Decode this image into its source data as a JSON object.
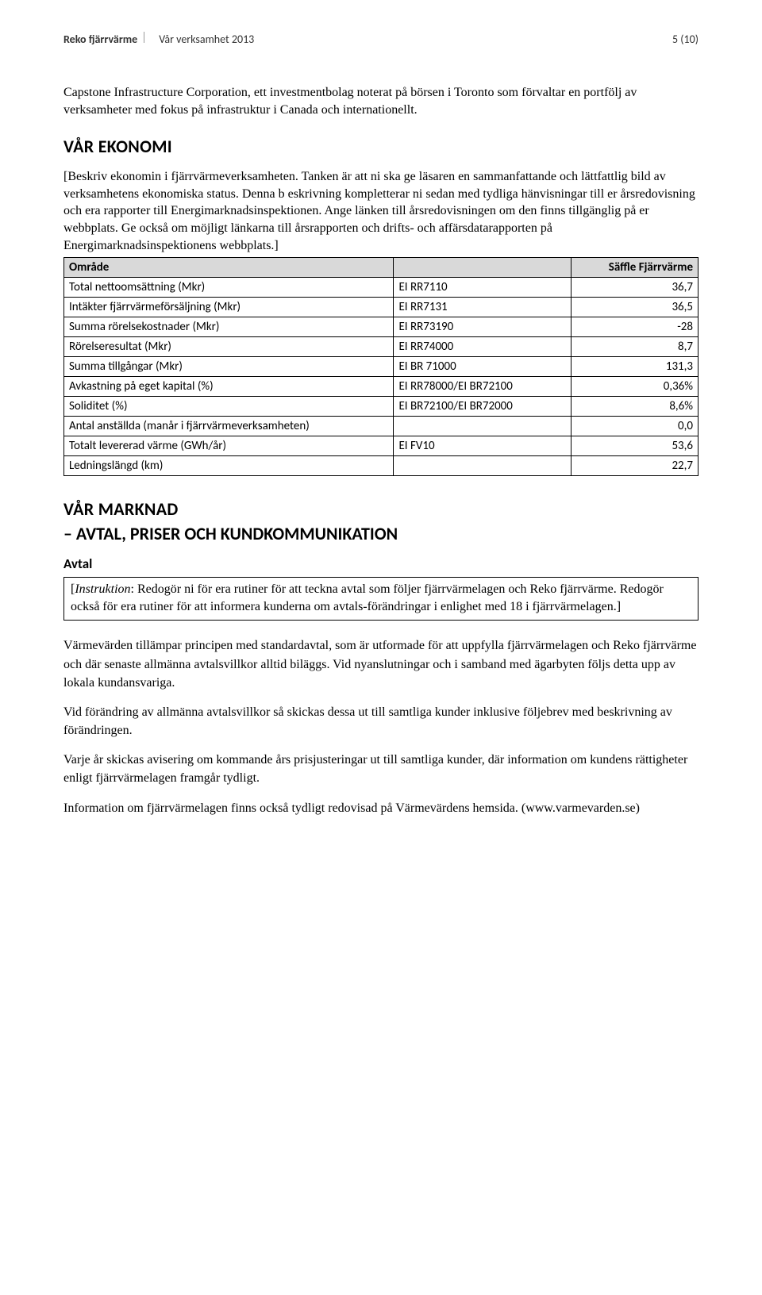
{
  "header": {
    "left": "Reko fjärrvärme",
    "center": "Vår verksamhet 2013",
    "right": "5 (10)"
  },
  "intro": "Capstone Infrastructure Corporation, ett investmentbolag noterat på börsen i Toronto som förvaltar en portfölj av verksamheter med fokus på infrastruktur i Canada och internationellt.",
  "ekonomi": {
    "heading": "VÅR EKONOMI",
    "instruction": "[Beskriv ekonomin i fjärrvärmeverksamheten. Tanken är att ni ska ge läsaren en sammanfattande och lättfattlig bild av verksamhetens ekonomiska status. Denna b eskrivning kompletterar ni sedan med tydliga hänvisningar till er årsredovisning och era rapporter till Energimarknadsinspektionen. Ange länken till årsredovisningen om den finns tillgänglig på er webbplats. Ge också om möjligt länkarna till årsrapporten och drifts- och affärsdatarapporten på Energimarknadsinspektionens webbplats.]",
    "table": {
      "header_area": "Område",
      "header_val": "Säffle Fjärrvärme",
      "rows": [
        {
          "label": "Total nettoomsättning (Mkr)",
          "code": "EI RR7110",
          "value": "36,7"
        },
        {
          "label": "Intäkter fjärrvärmeförsäljning (Mkr)",
          "code": "EI RR7131",
          "value": "36,5"
        },
        {
          "label": "Summa rörelsekostnader (Mkr)",
          "code": "EI RR73190",
          "value": "-28"
        },
        {
          "label": "Rörelseresultat (Mkr)",
          "code": "EI RR74000",
          "value": "8,7"
        },
        {
          "label": "Summa tillgångar (Mkr)",
          "code": "EI BR 71000",
          "value": "131,3"
        },
        {
          "label": "Avkastning på eget kapital (%)",
          "code": "EI RR78000/EI BR72100",
          "value": "0,36%"
        },
        {
          "label": "Soliditet (%)",
          "code": "EI BR72100/EI BR72000",
          "value": "8,6%"
        },
        {
          "label": "Antal anställda (manår i fjärrvärmeverksamheten)",
          "code": "",
          "value": "0,0"
        },
        {
          "label": "Totalt levererad värme (GWh/år)",
          "code": "EI FV10",
          "value": "53,6"
        },
        {
          "label": "Ledningslängd (km)",
          "code": "",
          "value": "22,7"
        }
      ]
    }
  },
  "marknad": {
    "heading1": "VÅR MARKNAD",
    "heading2": "– AVTAL, PRISER OCH KUNDKOMMUNIKATION",
    "avtal_heading": "Avtal",
    "box_prefix": "[",
    "box_italic": "Instruktion",
    "box_rest": ": Redogör ni för era rutiner för att teckna avtal som följer fjärrvärmelagen och Reko fjärrvärme. Redogör också för era rutiner för att informera kunderna om avtals-förändringar i enlighet med 18 i fjärrvärmelagen.]",
    "para1": "Värmevärden tillämpar principen med standardavtal, som är utformade för att uppfylla fjärrvärmelagen och Reko fjärrvärme och där senaste allmänna avtalsvillkor alltid biläggs. Vid nyanslutningar och i samband med ägarbyten följs detta upp av lokala kundansvariga.",
    "para2": "Vid förändring av allmänna avtalsvillkor så skickas dessa ut till samtliga kunder inklusive följebrev med beskrivning av förändringen.",
    "para3": "Varje år skickas avisering om kommande års prisjusteringar ut till samtliga kunder, där information om kundens rättigheter enligt fjärrvärmelagen framgår tydligt.",
    "para4": "Information om fjärrvärmelagen finns också tydligt redovisad på Värmevärdens hemsida. (www.varmevarden.se)"
  }
}
